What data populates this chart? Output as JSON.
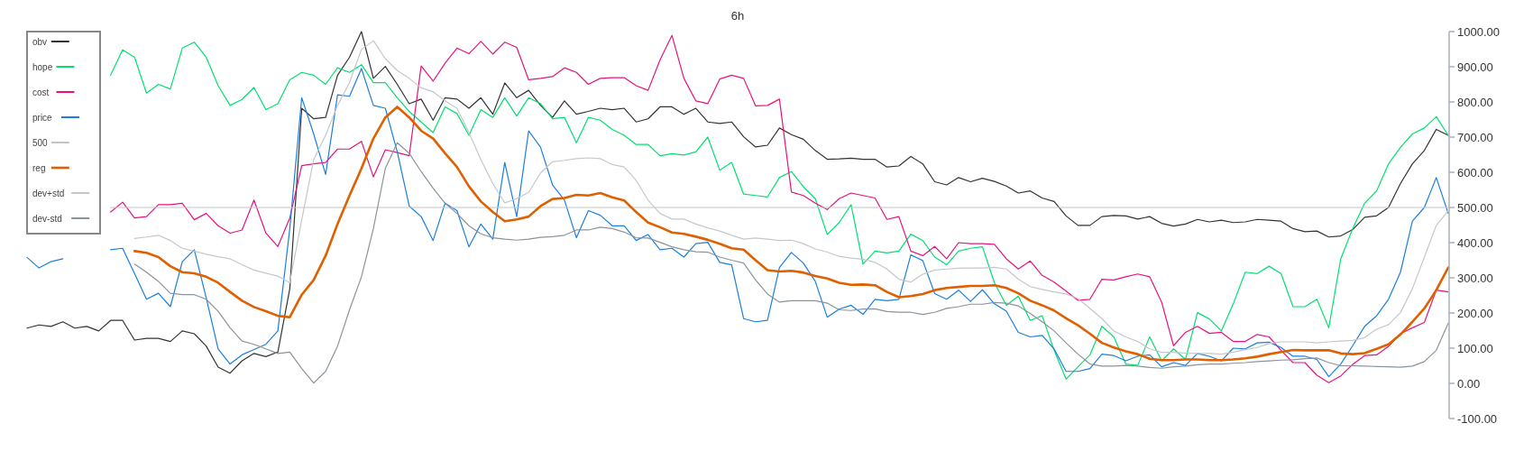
{
  "chart_data": {
    "type": "line",
    "title": "6h",
    "categories": [
      null,
      null,
      null,
      null,
      null,
      null,
      null,
      null,
      null,
      null,
      null,
      null,
      null,
      null,
      null,
      null,
      null,
      null,
      null,
      null,
      null,
      null,
      null,
      null,
      null,
      null,
      null,
      null,
      null,
      null,
      null,
      null,
      null,
      null,
      null,
      null,
      null,
      null,
      null,
      null,
      null,
      null,
      null,
      null,
      null,
      null,
      null,
      null,
      null,
      null,
      null,
      null,
      null,
      null,
      null,
      null,
      null,
      null,
      null,
      null,
      null,
      null,
      null,
      null,
      null,
      null,
      null,
      null,
      null,
      null,
      null,
      null,
      null,
      null,
      null,
      null,
      null,
      null,
      null,
      null,
      null,
      null,
      null,
      null,
      null,
      null,
      null,
      null,
      null,
      null,
      null,
      null,
      null,
      null,
      null,
      null,
      null,
      null,
      null,
      null,
      null,
      null,
      null,
      null,
      null,
      null,
      null,
      null,
      null,
      null,
      null,
      null,
      null,
      null,
      null,
      null,
      null,
      null,
      null,
      null
    ],
    "ylim": [
      -100,
      1000
    ],
    "yticks": [
      {
        "value": -100,
        "label": "-100.00"
      },
      {
        "value": 0,
        "label": "0.00"
      },
      {
        "value": 100,
        "label": "100.00"
      },
      {
        "value": 200,
        "label": "200.00"
      },
      {
        "value": 300,
        "label": "300.00"
      },
      {
        "value": 400,
        "label": "400.00"
      },
      {
        "value": 500,
        "label": "500.00"
      },
      {
        "value": 600,
        "label": "600.00"
      },
      {
        "value": 700,
        "label": "700.00"
      },
      {
        "value": 800,
        "label": "800.00"
      },
      {
        "value": 900,
        "label": "900.00"
      },
      {
        "value": 1000,
        "label": "1000.00"
      }
    ],
    "tick_labels": "y",
    "legend": "top left",
    "series": [
      {
        "name": "obv",
        "color": "#333333",
        "values": [
          157,
          166,
          162,
          175,
          157,
          162,
          149,
          179,
          179,
          123,
          128,
          128,
          119,
          149,
          141,
          106,
          46,
          29,
          64,
          85,
          76,
          89,
          269,
          782,
          752,
          756,
          876,
          927,
          1000,
          867,
          901,
          850,
          795,
          808,
          748,
          812,
          808,
          782,
          812,
          765,
          854,
          812,
          833,
          790,
          756,
          803,
          765,
          773,
          782,
          778,
          782,
          743,
          752,
          786,
          786,
          765,
          782,
          743,
          739,
          743,
          701,
          672,
          677,
          726,
          707,
          694,
          662,
          637,
          638,
          640,
          637,
          637,
          615,
          618,
          645,
          624,
          573,
          564,
          585,
          573,
          583,
          574,
          561,
          541,
          547,
          527,
          517,
          476,
          449,
          449,
          474,
          477,
          476,
          467,
          474,
          455,
          447,
          453,
          466,
          459,
          464,
          457,
          459,
          466,
          464,
          461,
          440,
          431,
          433,
          416,
          419,
          437,
          472,
          476,
          500,
          568,
          624,
          662,
          722,
          705
        ]
      },
      {
        "name": "hope",
        "color": "#00e070",
        "values": [
          null,
          null,
          null,
          null,
          null,
          null,
          null,
          876,
          948,
          927,
          825,
          850,
          837,
          953,
          970,
          927,
          846,
          790,
          807,
          841,
          778,
          795,
          863,
          884,
          876,
          850,
          897,
          884,
          906,
          855,
          855,
          812,
          773,
          743,
          713,
          786,
          767,
          705,
          778,
          756,
          812,
          760,
          812,
          795,
          752,
          756,
          684,
          756,
          748,
          722,
          705,
          679,
          679,
          647,
          653,
          649,
          658,
          700,
          606,
          628,
          538,
          534,
          530,
          585,
          602,
          559,
          525,
          423,
          457,
          508,
          339,
          376,
          371,
          376,
          424,
          406,
          359,
          337,
          376,
          384,
          388,
          286,
          222,
          248,
          179,
          192,
          94,
          12,
          47,
          81,
          162,
          132,
          55,
          51,
          132,
          64,
          98,
          68,
          201,
          183,
          149,
          226,
          316,
          312,
          333,
          312,
          218,
          218,
          239,
          158,
          354,
          440,
          512,
          547,
          624,
          671,
          709,
          726,
          758,
          705
        ]
      },
      {
        "name": "cost",
        "color": "#e8127c",
        "values": [
          null,
          null,
          null,
          null,
          null,
          null,
          null,
          487,
          515,
          470,
          474,
          508,
          508,
          512,
          465,
          483,
          448,
          427,
          436,
          521,
          427,
          389,
          470,
          619,
          624,
          628,
          666,
          666,
          688,
          587,
          664,
          656,
          647,
          902,
          859,
          910,
          953,
          937,
          972,
          936,
          970,
          955,
          863,
          867,
          872,
          897,
          884,
          850,
          867,
          869,
          869,
          846,
          833,
          919,
          989,
          867,
          803,
          795,
          865,
          876,
          867,
          789,
          790,
          808,
          544,
          534,
          512,
          494,
          525,
          541,
          534,
          527,
          466,
          474,
          376,
          363,
          389,
          354,
          400,
          397,
          397,
          395,
          354,
          325,
          348,
          307,
          288,
          262,
          236,
          239,
          296,
          294,
          303,
          311,
          303,
          231,
          107,
          145,
          162,
          142,
          145,
          119,
          119,
          139,
          132,
          94,
          59,
          59,
          23,
          2,
          21,
          54,
          79,
          81,
          105,
          141,
          158,
          173,
          265,
          260
        ]
      },
      {
        "name": "price",
        "color": "#1a7fe0",
        "values": [
          358,
          328,
          346,
          354,
          null,
          null,
          null,
          380,
          384,
          312,
          239,
          256,
          218,
          346,
          380,
          243,
          98,
          55,
          81,
          96,
          111,
          149,
          440,
          812,
          709,
          594,
          820,
          816,
          895,
          790,
          782,
          658,
          504,
          474,
          406,
          512,
          491,
          388,
          453,
          410,
          628,
          474,
          718,
          671,
          564,
          521,
          414,
          491,
          478,
          448,
          448,
          406,
          423,
          380,
          384,
          359,
          397,
          401,
          344,
          337,
          184,
          175,
          179,
          329,
          372,
          342,
          290,
          188,
          211,
          222,
          196,
          239,
          235,
          239,
          365,
          349,
          255,
          239,
          265,
          233,
          266,
          226,
          205,
          145,
          132,
          136,
          98,
          34,
          34,
          42,
          83,
          79,
          64,
          77,
          81,
          47,
          59,
          51,
          85,
          77,
          64,
          100,
          98,
          115,
          117,
          102,
          77,
          77,
          68,
          19,
          55,
          107,
          162,
          192,
          239,
          316,
          461,
          500,
          585,
          483
        ]
      },
      {
        "name": "500",
        "color": "#c4c4c4",
        "values": [
          null,
          null,
          null,
          null,
          null,
          null,
          null,
          500,
          500,
          500,
          500,
          500,
          500,
          500,
          500,
          500,
          500,
          500,
          500,
          500,
          500,
          500,
          500,
          500,
          500,
          500,
          500,
          500,
          500,
          500,
          500,
          500,
          500,
          500,
          500,
          500,
          500,
          500,
          500,
          500,
          500,
          500,
          500,
          500,
          500,
          500,
          500,
          500,
          500,
          500,
          500,
          500,
          500,
          500,
          500,
          500,
          500,
          500,
          500,
          500,
          500,
          500,
          500,
          500,
          500,
          500,
          500,
          500,
          500,
          500,
          500,
          500,
          500,
          500,
          500,
          500,
          500,
          500,
          500,
          500,
          500,
          500,
          500,
          500,
          500,
          500,
          500,
          500,
          500,
          500,
          500,
          500,
          500,
          500,
          500,
          500,
          500,
          500,
          500,
          500,
          500,
          500,
          500,
          500,
          500,
          500,
          500,
          500,
          500,
          500,
          500,
          500,
          500,
          500,
          500,
          500,
          500,
          500,
          500,
          500
        ]
      },
      {
        "name": "reg",
        "color": "#e06000",
        "values": [
          null,
          null,
          null,
          null,
          null,
          null,
          null,
          null,
          null,
          376,
          371,
          359,
          333,
          316,
          313,
          303,
          286,
          260,
          235,
          217,
          205,
          192,
          188,
          252,
          294,
          363,
          453,
          534,
          611,
          696,
          756,
          786,
          756,
          718,
          696,
          654,
          615,
          560,
          517,
          487,
          461,
          466,
          474,
          504,
          524,
          527,
          536,
          534,
          541,
          529,
          520,
          487,
          457,
          444,
          429,
          425,
          417,
          408,
          397,
          384,
          380,
          350,
          322,
          318,
          320,
          315,
          305,
          298,
          286,
          280,
          281,
          279,
          260,
          245,
          248,
          254,
          265,
          271,
          274,
          277,
          277,
          279,
          271,
          256,
          235,
          222,
          207,
          185,
          165,
          141,
          115,
          102,
          91,
          83,
          70,
          66,
          66,
          68,
          68,
          66,
          66,
          68,
          71,
          76,
          83,
          89,
          95,
          94,
          94,
          94,
          85,
          83,
          86,
          98,
          111,
          139,
          175,
          213,
          265,
          329
        ]
      },
      {
        "name": "dev+std",
        "color": "#c2c8ce",
        "values": [
          null,
          null,
          null,
          null,
          null,
          null,
          null,
          null,
          null,
          412,
          416,
          421,
          406,
          384,
          376,
          367,
          360,
          354,
          337,
          322,
          313,
          305,
          286,
          465,
          636,
          705,
          790,
          855,
          949,
          974,
          923,
          889,
          867,
          840,
          829,
          803,
          782,
          713,
          636,
          568,
          513,
          525,
          543,
          598,
          630,
          634,
          639,
          641,
          639,
          622,
          615,
          577,
          521,
          483,
          467,
          467,
          453,
          442,
          433,
          421,
          410,
          413,
          410,
          406,
          407,
          397,
          382,
          373,
          361,
          356,
          353,
          344,
          325,
          296,
          288,
          310,
          322,
          325,
          327,
          328,
          328,
          330,
          325,
          296,
          275,
          267,
          260,
          254,
          241,
          213,
          184,
          149,
          132,
          119,
          98,
          88,
          88,
          86,
          85,
          85,
          83,
          89,
          96,
          102,
          113,
          118,
          118,
          118,
          115,
          118,
          120,
          122,
          130,
          154,
          167,
          201,
          269,
          359,
          449,
          491
        ]
      },
      {
        "name": "dev-std",
        "color": "#8a949c",
        "values": [
          null,
          null,
          null,
          null,
          null,
          null,
          null,
          null,
          null,
          339,
          316,
          290,
          256,
          252,
          252,
          239,
          205,
          158,
          120,
          111,
          98,
          85,
          89,
          42,
          1,
          34,
          106,
          209,
          303,
          440,
          611,
          684,
          654,
          602,
          555,
          512,
          483,
          448,
          425,
          414,
          410,
          407,
          410,
          415,
          417,
          421,
          436,
          436,
          444,
          440,
          430,
          414,
          413,
          401,
          388,
          380,
          374,
          373,
          359,
          350,
          342,
          294,
          254,
          231,
          235,
          235,
          235,
          228,
          209,
          207,
          211,
          212,
          204,
          202,
          202,
          196,
          202,
          213,
          218,
          225,
          225,
          230,
          228,
          220,
          199,
          175,
          149,
          115,
          83,
          55,
          49,
          49,
          51,
          49,
          45,
          43,
          47,
          49,
          53,
          55,
          55,
          57,
          59,
          62,
          64,
          66,
          67,
          70,
          72,
          59,
          50,
          50,
          49,
          48,
          47,
          46,
          49,
          62,
          94,
          171
        ]
      }
    ]
  }
}
